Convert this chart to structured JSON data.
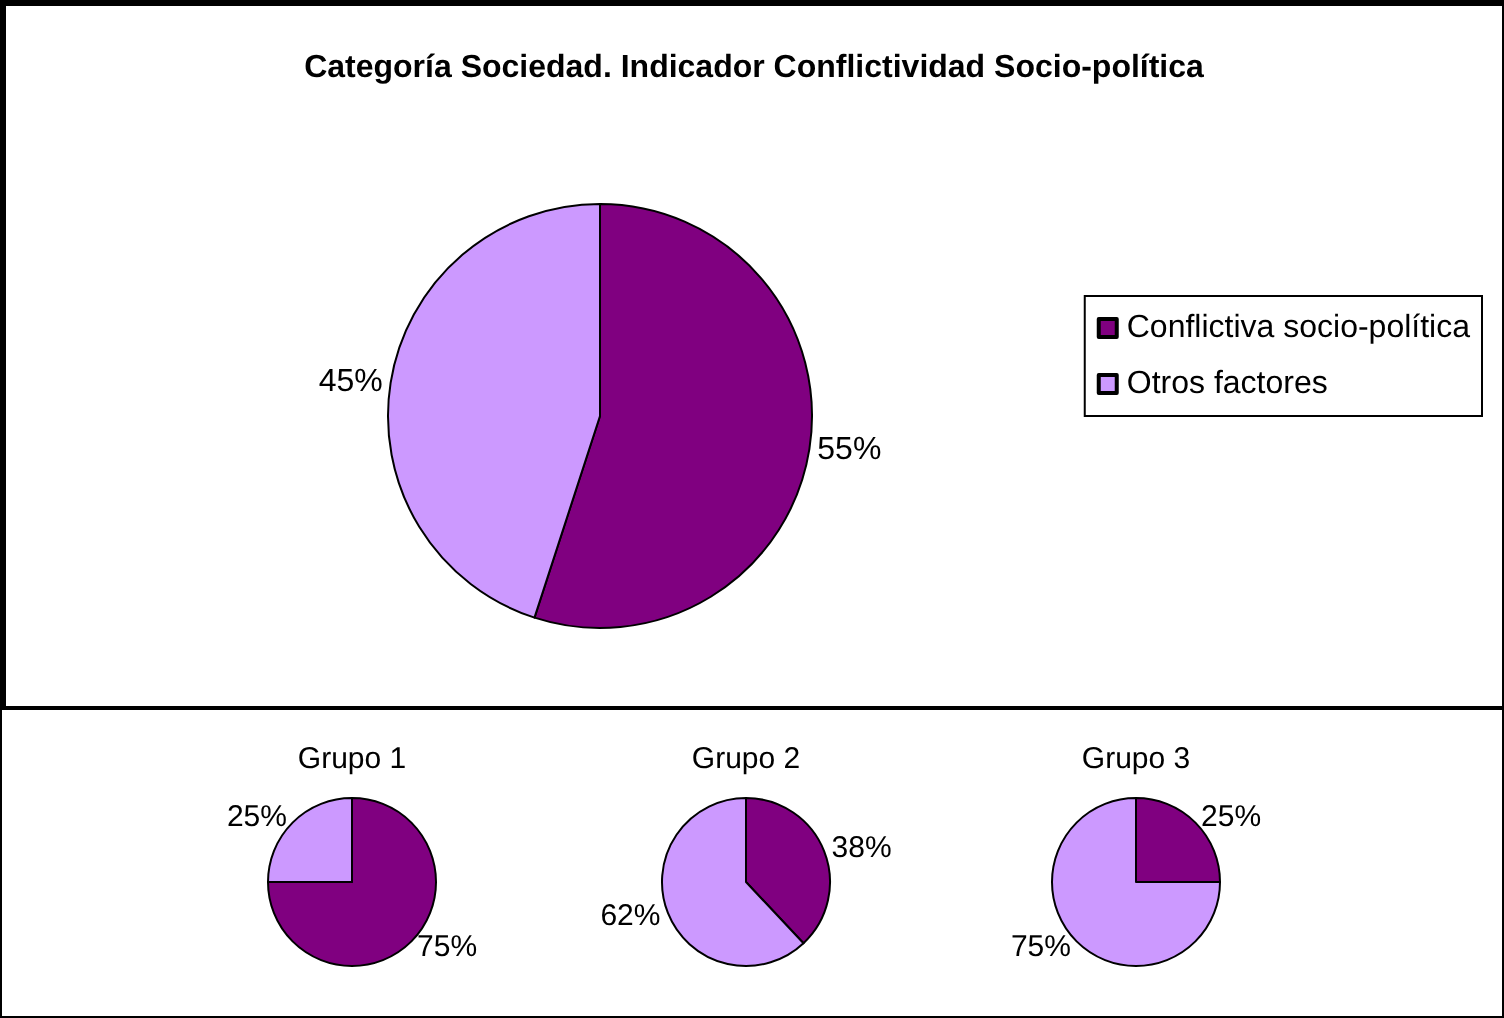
{
  "chart_data": [
    {
      "type": "pie",
      "title": "Categoría Sociedad. Indicador Conflictividad Socio-política",
      "categories": [
        "Conflictiva socio-política",
        "Otros factores"
      ],
      "values": [
        55,
        45
      ],
      "colors": [
        "#800080",
        "#cc99ff"
      ],
      "value_labels": [
        "55%",
        "45%"
      ],
      "legend": "right"
    },
    {
      "type": "pie",
      "title": "Grupo 1",
      "categories": [
        null,
        null
      ],
      "values": [
        75,
        25
      ],
      "colors": [
        "#800080",
        "#cc99ff"
      ],
      "value_labels": [
        "75%",
        "25%"
      ]
    },
    {
      "type": "pie",
      "title": "Grupo 2",
      "categories": [
        null,
        null
      ],
      "values": [
        38,
        62
      ],
      "colors": [
        "#800080",
        "#cc99ff"
      ],
      "value_labels": [
        "38%",
        "62%"
      ]
    },
    {
      "type": "pie",
      "title": "Grupo 3",
      "categories": [
        null,
        null
      ],
      "values": [
        25,
        75
      ],
      "colors": [
        "#800080",
        "#cc99ff"
      ],
      "value_labels": [
        "25%",
        "75%"
      ]
    }
  ]
}
